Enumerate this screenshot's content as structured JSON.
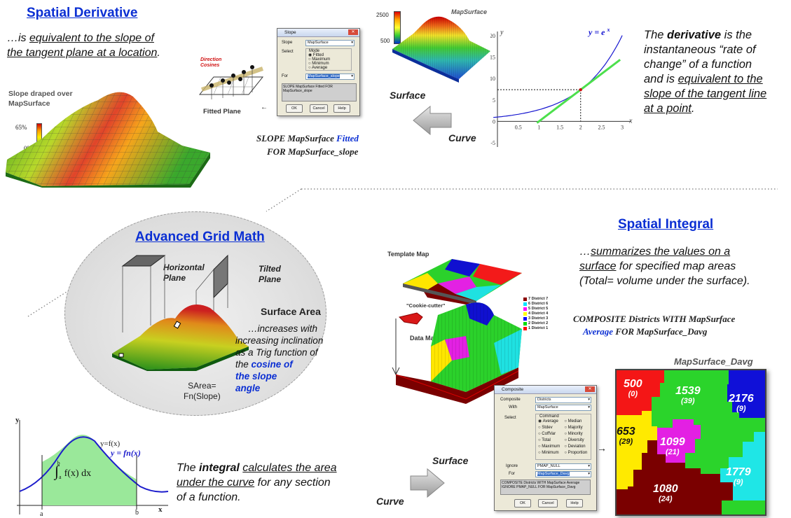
{
  "spatial_derivative": {
    "title": "Spatial Derivative",
    "desc_pre": "…is ",
    "desc_u1": "equivalent to the slope of",
    "desc_u2": "the tangent plane at a location",
    "desc_post": ".",
    "slope_caption_1": "Slope draped over",
    "slope_caption_2": "MapSurface",
    "legend_max": "65%",
    "legend_min": "0%",
    "direction_cosines_1": "Direction",
    "direction_cosines_2": "Cosines",
    "fitted_plane": "Fitted Plane",
    "command_1_pre": "SLOPE MapSurface ",
    "command_1_kw": "Fitted",
    "command_2": "FOR MapSurface_slope",
    "surface_label": "Surface",
    "curve_label": "Curve",
    "mapsurface_label": "MapSurface",
    "axis_2500": "2500",
    "axis_500": "500"
  },
  "slope_dialog": {
    "title": "Slope",
    "slope_label": "Slope",
    "slope_value": "MapSurface",
    "select_label": "Select",
    "mode_label": "Mode",
    "modes": [
      "Fitted",
      "Maximum",
      "Minimum",
      "Average"
    ],
    "for_label": "For",
    "for_value": "MapSurface_slope",
    "text": "SLOPE MapSurface Fitted FOR MapSurface_slope",
    "ok": "OK",
    "cancel": "Cancel",
    "help": "Help"
  },
  "derivative_chart": {
    "equation": "y = e",
    "equation_exp": "x",
    "y_label": "y",
    "x_label": "x",
    "y_ticks": [
      "20",
      "15",
      "10",
      "5",
      "0",
      "-5"
    ],
    "x_ticks": [
      "0.5",
      "1",
      "1.5",
      "2",
      "2.5",
      "3"
    ]
  },
  "derivative_text": {
    "l1_pre": "The ",
    "l1_b": "derivative",
    "l1_post": " is the",
    "l2": "instantaneous “rate of",
    "l3": "change” of a function",
    "l4_pre": "and is ",
    "l4_u": "equivalent to the",
    "l5": "slope of the tangent line",
    "l6_u": "at a point",
    "l6_post": "."
  },
  "advanced": {
    "title": "Advanced Grid Math",
    "horizontal_1": "Horizontal",
    "horizontal_2": "Plane",
    "tilted_1": "Tilted",
    "tilted_2": "Plane",
    "surface_area": "Surface Area",
    "inc_1": "…increases with",
    "inc_2": "increasing inclination",
    "inc_3": "as a Trig function of",
    "inc_4_pre": "the ",
    "inc_4_b": "cosine of",
    "inc_5": "the slope",
    "inc_6": "angle",
    "sarea_1": "SArea=",
    "sarea_2": "Fn(Slope)"
  },
  "spatial_integral": {
    "title": "Spatial Integral",
    "l1_pre": "…",
    "l1_u": "summarizes the values on a",
    "l2_u": "surface",
    "l2_post": " for specified map areas",
    "l3": "(Total= volume under the surface).",
    "command_1": "COMPOSITE Districts WITH MapSurface",
    "command_2_kw": "Average",
    "command_2_post": " FOR MapSurface_Davg",
    "template_map": "Template Map",
    "cookie_cutter": "\"Cookie-cutter\"",
    "data_map": "Data Map",
    "surface_label": "Surface",
    "curve_label": "Curve"
  },
  "district_legend": [
    {
      "label": "7 District 7",
      "color": "#8b0000"
    },
    {
      "label": "6 District 6",
      "color": "#00e5ff"
    },
    {
      "label": "5 District 5",
      "color": "#ff00ff"
    },
    {
      "label": "4 District 4",
      "color": "#ffff00"
    },
    {
      "label": "3 District 3",
      "color": "#0000ff"
    },
    {
      "label": "2 District 2",
      "color": "#00dd00"
    },
    {
      "label": "1 District 1",
      "color": "#ff0000"
    }
  ],
  "composite_dialog": {
    "title": "Composite",
    "composite_label": "Composite",
    "composite_value": "Districts",
    "with_label": "With",
    "with_value": "MapSurface",
    "select_label": "Select",
    "command_label": "Command",
    "options_left": [
      "Average",
      "Stdev",
      "CoffVar",
      "Total",
      "Maximum",
      "Minimum"
    ],
    "options_right": [
      "Median",
      "Majority",
      "Minority",
      "Diversity",
      "Deviation",
      "Proportion"
    ],
    "ignore_label": "Ignore",
    "ignore_value": "PMAP_NULL",
    "for_label": "For",
    "for_value": "MapSurface_Davg",
    "text": "COMPOSITE Districts WITH MapSurface Average IGNORE PMAP_NULL FOR MapSurface_Davg",
    "ok": "OK",
    "cancel": "Cancel",
    "help": "Help"
  },
  "davg_map": {
    "title": "MapSurface_Davg",
    "cells": [
      {
        "value": "500",
        "count": "(0)"
      },
      {
        "value": "1539",
        "count": "(39)"
      },
      {
        "value": "2176",
        "count": "(9)"
      },
      {
        "value": "653",
        "count": "(29)"
      },
      {
        "value": "1099",
        "count": "(21)"
      },
      {
        "value": "1779",
        "count": "(9)"
      },
      {
        "value": "1080",
        "count": "(24)"
      }
    ]
  },
  "integral_chart": {
    "y_label": "y",
    "x_label": "x",
    "a_label": "a",
    "b_label": "b",
    "fx_label": "y=f(x)",
    "fnx_label": "y = fn(x)",
    "integral_lower": "a",
    "integral_upper": "b",
    "integral_body": "f(x) dx"
  },
  "integral_text": {
    "l1_pre": "The ",
    "l1_b": "integral",
    "l1_space": " ",
    "l1_u": "calculates the area",
    "l2_u": "under the curve",
    "l2_post": " for any section",
    "l3": "of a function."
  }
}
